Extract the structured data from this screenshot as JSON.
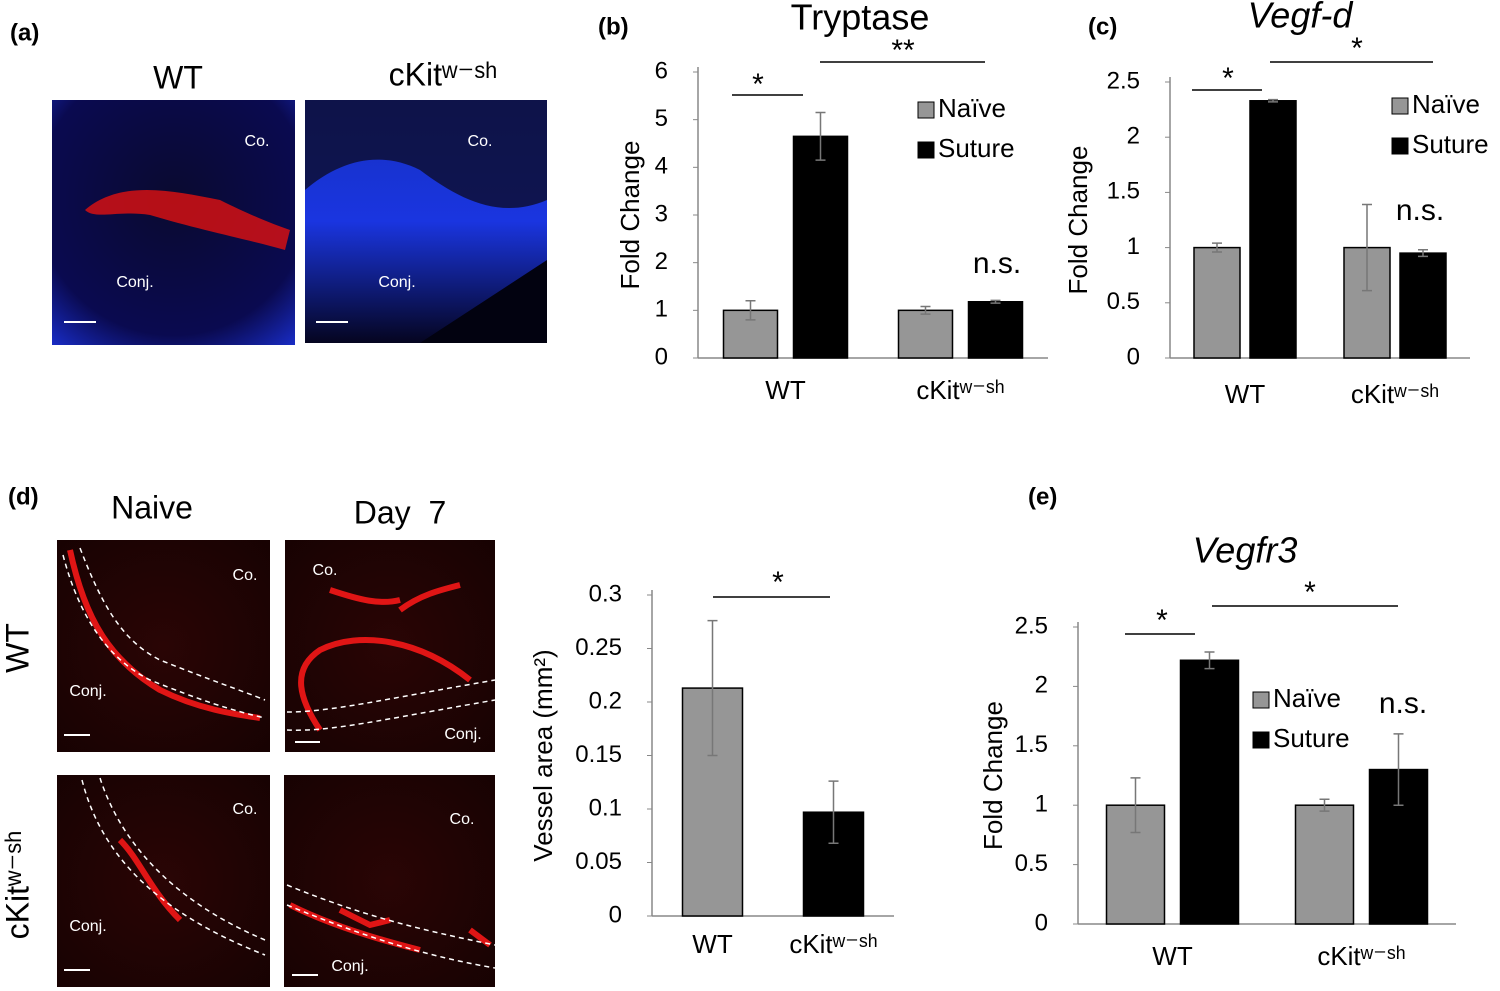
{
  "panel_labels": [
    "(a)",
    "(d)"
  ],
  "panel_a": {
    "columns": [
      "WT",
      "cKitʷ⁻ˢʰ"
    ],
    "tissue_labels": [
      "Co.",
      "Conj.",
      "Co.",
      "Conj."
    ]
  },
  "panel_d": {
    "columns": [
      "Naive",
      "Day  7"
    ],
    "rows": [
      "WT",
      "cKitʷ⁻ˢʰ"
    ],
    "tissue_labels": [
      "Co.",
      "Conj.",
      "Co.",
      "Conj.",
      "Co.",
      "Conj.",
      "Co.",
      "Conj."
    ]
  },
  "chart_data": [
    {
      "type": "bar",
      "label": "(b)",
      "title": "Tryptase",
      "title_style": "normal",
      "y_label": "Fold Change",
      "categories": [
        "WT",
        "cKitʷ⁻ˢʰ"
      ],
      "series": [
        {
          "name": "Naïve",
          "color": "#969696",
          "values": [
            1,
            1
          ],
          "errors": [
            0.2,
            0.08
          ]
        },
        {
          "name": "Suture",
          "color": "#000000",
          "values": [
            4.65,
            1.18
          ],
          "errors": [
            0.5,
            0.03
          ]
        }
      ],
      "ylim": [
        0,
        6
      ],
      "yticks": [
        0,
        1,
        2,
        3,
        4,
        5,
        6
      ],
      "annotations": [
        "*",
        "**",
        "n.s."
      ]
    },
    {
      "type": "bar",
      "label": "(c)",
      "title": "Vegf-d",
      "title_style": "italic",
      "y_label": "Fold Change",
      "categories": [
        "WT",
        "cKitʷ⁻ˢʰ"
      ],
      "series": [
        {
          "name": "Naïve",
          "color": "#969696",
          "values": [
            1,
            1
          ],
          "errors": [
            0.04,
            0.39
          ]
        },
        {
          "name": "Suture",
          "color": "#000000",
          "values": [
            2.33,
            0.95
          ],
          "errors": [
            0.01,
            0.03
          ]
        }
      ],
      "ylim": [
        0,
        2.5
      ],
      "yticks": [
        0,
        0.5,
        1,
        1.5,
        2,
        2.5
      ],
      "annotations": [
        "*",
        "*",
        "n.s."
      ]
    },
    {
      "type": "bar",
      "y_label": "Vessel area (mm²)",
      "categories": [
        "WT",
        "cKitʷ⁻ˢʰ"
      ],
      "series": [
        {
          "colors": [
            "#969696",
            "#000000"
          ],
          "values": [
            0.213,
            0.097
          ],
          "errors": [
            0.063,
            0.029
          ]
        }
      ],
      "ylim": [
        0,
        0.3
      ],
      "yticks": [
        0,
        0.05,
        0.1,
        0.15,
        0.2,
        0.25,
        0.3
      ],
      "annotations": [
        "*"
      ]
    },
    {
      "type": "bar",
      "label": "(e)",
      "title": "Vegfr3",
      "title_style": "italic",
      "y_label": "Fold Change",
      "categories": [
        "WT",
        "cKitʷ⁻ˢʰ"
      ],
      "series": [
        {
          "name": "Naïve",
          "color": "#969696",
          "values": [
            1,
            1
          ],
          "errors": [
            0.23,
            0.05
          ]
        },
        {
          "name": "Suture",
          "color": "#000000",
          "values": [
            2.22,
            1.3
          ],
          "errors": [
            0.07,
            0.3
          ]
        }
      ],
      "ylim": [
        0,
        2.5
      ],
      "yticks": [
        0,
        0.5,
        1,
        1.5,
        2,
        2.5
      ],
      "annotations": [
        "*",
        "*",
        "n.s."
      ]
    }
  ]
}
